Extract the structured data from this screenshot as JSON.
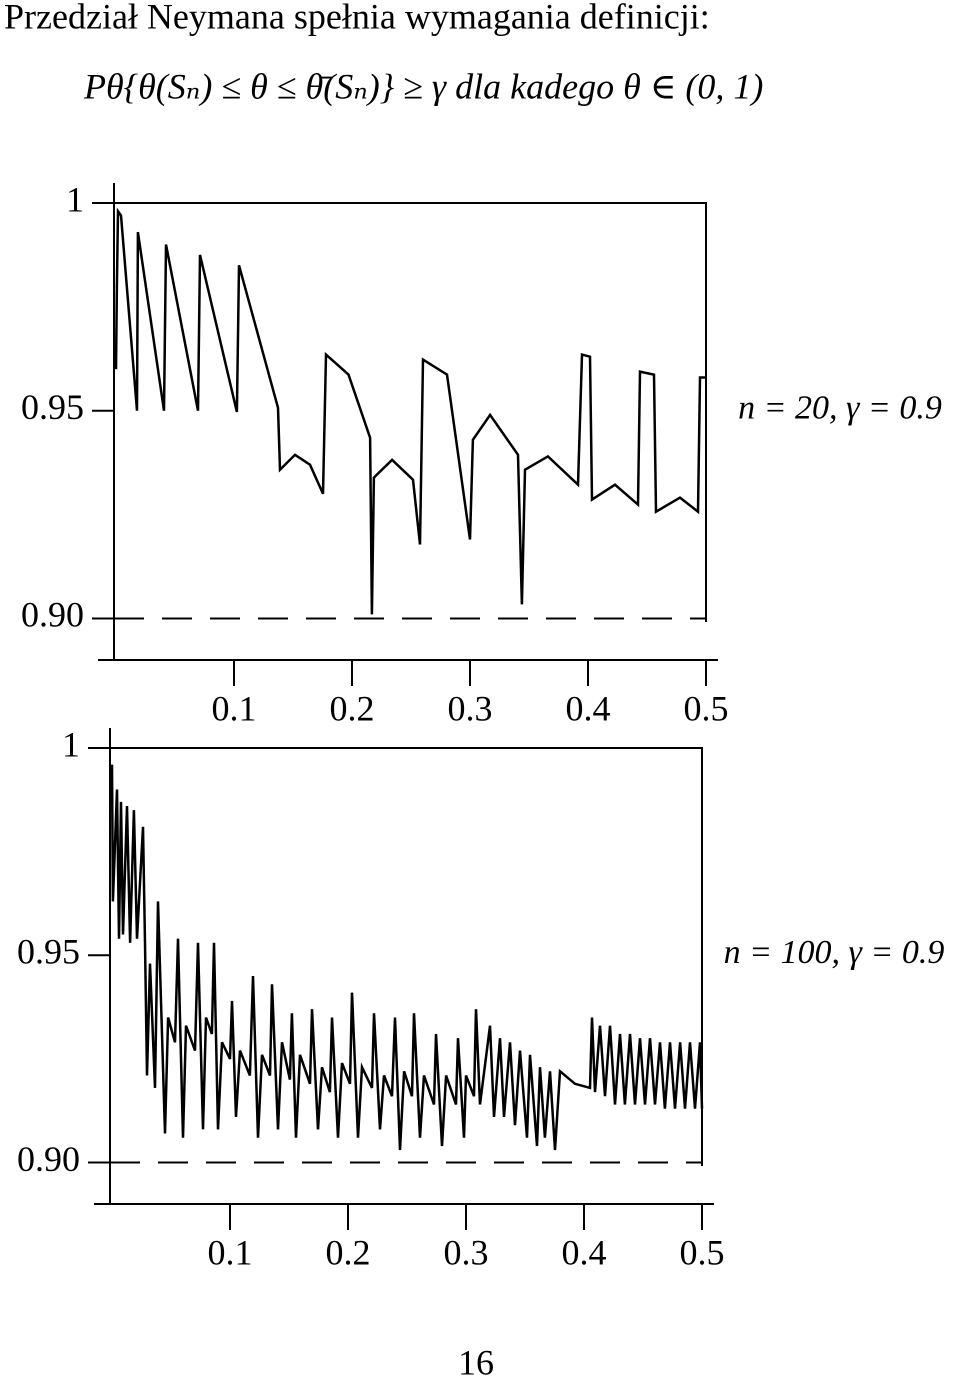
{
  "header": {
    "title": "Przedział Neymana spełnia wymagania definicji:",
    "formula": "Pθ{θ(Sₙ) ≤ θ ≤ θ̄(Sₙ)} ≥ γ    dla kadego θ ∈ (0, 1)"
  },
  "chart_data": [
    {
      "type": "line",
      "annotation": "n = 20, γ = 0.9",
      "color": "#000000",
      "xlim": [
        0,
        0.5
      ],
      "ylim": [
        0.89,
        1
      ],
      "xticks": [
        0.1,
        0.2,
        0.3,
        0.4,
        0.5
      ],
      "yticks": [
        1,
        0.95,
        {
          "value": 0.9,
          "label": "0.90"
        }
      ],
      "hline": 0.9,
      "hline_style": "dashed",
      "x": [
        0,
        0.0008,
        0.0017,
        0.0042,
        0.0178,
        0.0186,
        0.0407,
        0.0424,
        0.0695,
        0.0712,
        0.1025,
        0.1042,
        0.1373,
        0.139,
        0.1517,
        0.1644,
        0.1754,
        0.178,
        0.197,
        0.2153,
        0.2169,
        0.2186,
        0.234,
        0.2517,
        0.2576,
        0.2602,
        0.2805,
        0.3,
        0.3025,
        0.317,
        0.3407,
        0.344,
        0.3466,
        0.366,
        0.3915,
        0.3949,
        0.4017,
        0.4034,
        0.4229,
        0.4424,
        0.4441,
        0.4559,
        0.4576,
        0.478,
        0.4932,
        0.4949,
        0.5
      ],
      "values": [
        0.96,
        0.98,
        0.998,
        0.997,
        0.95,
        0.993,
        0.95,
        0.99,
        0.95,
        0.9875,
        0.9497,
        0.985,
        0.9507,
        0.9358,
        0.9394,
        0.937,
        0.93,
        0.9635,
        0.9587,
        0.9435,
        0.901,
        0.9339,
        0.9382,
        0.9334,
        0.9178,
        0.9623,
        0.9587,
        0.919,
        0.943,
        0.949,
        0.9394,
        0.9034,
        0.9358,
        0.939,
        0.9322,
        0.9635,
        0.963,
        0.9286,
        0.9322,
        0.9274,
        0.9594,
        0.9587,
        0.9257,
        0.9291,
        0.9257,
        0.958,
        0.958
      ]
    },
    {
      "type": "line",
      "annotation": "n = 100, γ = 0.9",
      "color": "#000000",
      "xlim": [
        0,
        0.5
      ],
      "ylim": [
        0.89,
        1
      ],
      "xticks": [
        0.1,
        0.2,
        0.3,
        0.4,
        0.5
      ],
      "yticks": [
        1,
        0.95,
        {
          "value": 0.9,
          "label": "0.90"
        }
      ],
      "hline": 0.9,
      "hline_style": "dashed",
      "x": [
        0,
        0.0008,
        0.0042,
        0.0059,
        0.0076,
        0.0093,
        0.0127,
        0.0153,
        0.0186,
        0.0212,
        0.0263,
        0.028,
        0.0297,
        0.0322,
        0.0364,
        0.039,
        0.0449,
        0.0475,
        0.0534,
        0.0559,
        0.0602,
        0.0627,
        0.0703,
        0.0729,
        0.0771,
        0.0797,
        0.0847,
        0.0864,
        0.0898,
        0.0932,
        0.1,
        0.1017,
        0.1051,
        0.1085,
        0.1169,
        0.1195,
        0.1237,
        0.1271,
        0.1339,
        0.1356,
        0.1407,
        0.1441,
        0.1508,
        0.1525,
        0.1559,
        0.1593,
        0.1678,
        0.1695,
        0.1746,
        0.178,
        0.1847,
        0.1864,
        0.1915,
        0.1949,
        0.2017,
        0.2034,
        0.2085,
        0.2119,
        0.2203,
        0.222,
        0.2271,
        0.2305,
        0.2373,
        0.2398,
        0.2441,
        0.2475,
        0.2542,
        0.2559,
        0.261,
        0.2644,
        0.2729,
        0.2746,
        0.2797,
        0.2831,
        0.2915,
        0.2932,
        0.2983,
        0.3,
        0.3068,
        0.3085,
        0.3119,
        0.3203,
        0.3237,
        0.3288,
        0.3322,
        0.3373,
        0.3415,
        0.3458,
        0.3517,
        0.3542,
        0.3602,
        0.3627,
        0.3669,
        0.3712,
        0.3754,
        0.3797,
        0.3924,
        0.4051,
        0.4068,
        0.4093,
        0.4136,
        0.4178,
        0.422,
        0.4263,
        0.4305,
        0.4347,
        0.439,
        0.4432,
        0.4475,
        0.4517,
        0.4559,
        0.4602,
        0.4644,
        0.4686,
        0.4729,
        0.4771,
        0.4814,
        0.4856,
        0.4898,
        0.4941,
        0.4983,
        0.5
      ],
      "values": [
        0.996,
        0.963,
        0.99,
        0.954,
        0.987,
        0.955,
        0.986,
        0.953,
        0.985,
        0.954,
        0.981,
        0.953,
        0.921,
        0.948,
        0.918,
        0.963,
        0.907,
        0.935,
        0.929,
        0.954,
        0.906,
        0.933,
        0.927,
        0.953,
        0.908,
        0.935,
        0.931,
        0.953,
        0.908,
        0.929,
        0.925,
        0.939,
        0.911,
        0.927,
        0.921,
        0.945,
        0.906,
        0.926,
        0.921,
        0.943,
        0.908,
        0.929,
        0.92,
        0.936,
        0.906,
        0.926,
        0.919,
        0.937,
        0.908,
        0.923,
        0.917,
        0.935,
        0.906,
        0.924,
        0.919,
        0.941,
        0.906,
        0.923,
        0.918,
        0.936,
        0.908,
        0.921,
        0.916,
        0.935,
        0.903,
        0.922,
        0.916,
        0.936,
        0.906,
        0.921,
        0.914,
        0.931,
        0.904,
        0.921,
        0.914,
        0.93,
        0.906,
        0.921,
        0.916,
        0.937,
        0.914,
        0.933,
        0.911,
        0.93,
        0.911,
        0.929,
        0.909,
        0.927,
        0.906,
        0.926,
        0.904,
        0.923,
        0.906,
        0.922,
        0.903,
        0.922,
        0.919,
        0.918,
        0.935,
        0.917,
        0.933,
        0.916,
        0.933,
        0.914,
        0.931,
        0.914,
        0.931,
        0.914,
        0.93,
        0.914,
        0.93,
        0.914,
        0.929,
        0.913,
        0.929,
        0.913,
        0.929,
        0.913,
        0.929,
        0.913,
        0.929,
        0.913
      ]
    }
  ],
  "page_number": "16"
}
